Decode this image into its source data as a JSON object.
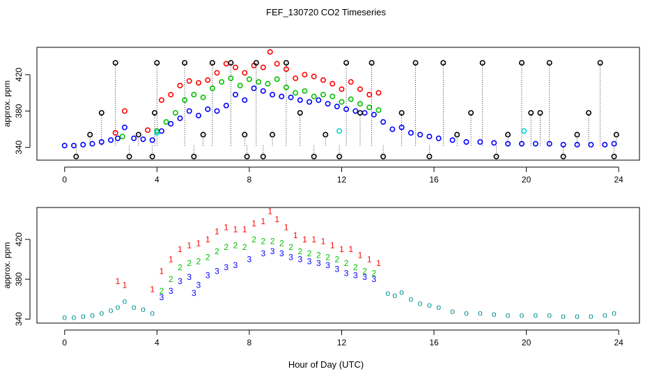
{
  "chart_data": [
    {
      "type": "scatter",
      "title": "FEF_130720  CO2 Timeseries",
      "xlabel": "",
      "ylabel": "approx. ppm",
      "xlim": [
        -1.2,
        24.9
      ],
      "ylim": [
        326,
        450
      ],
      "xticks": [
        0,
        4,
        8,
        12,
        16,
        20,
        24
      ],
      "xtick_labels": [
        "0",
        "4",
        "8",
        "12",
        "16",
        "20",
        "24"
      ],
      "yticks": [
        340,
        380,
        420
      ],
      "ytick_labels": [
        "340",
        "380",
        "420"
      ],
      "marker": "circle",
      "series": [
        {
          "name": "red",
          "color": "#ff0000",
          "x": [
            2.2,
            2.6,
            3.6,
            4.2,
            4.6,
            5.0,
            5.4,
            5.8,
            6.2,
            6.6,
            7.0,
            7.4,
            7.8,
            8.2,
            8.6,
            8.9,
            9.2,
            9.6,
            10.0,
            10.4,
            10.8,
            11.2,
            11.6,
            12.0,
            12.4,
            12.8,
            13.2,
            13.6
          ],
          "y": [
            356,
            380,
            359,
            392,
            398,
            408,
            413,
            411,
            414,
            422,
            432,
            428,
            422,
            430,
            428,
            445,
            432,
            426,
            416,
            420,
            418,
            414,
            410,
            404,
            412,
            404,
            398,
            400
          ]
        },
        {
          "name": "green",
          "color": "#00c000",
          "x": [
            2.5,
            4.0,
            4.4,
            4.8,
            5.2,
            5.6,
            6.0,
            6.4,
            6.8,
            7.2,
            7.6,
            8.0,
            8.4,
            8.8,
            9.2,
            9.6,
            10.0,
            10.4,
            10.8,
            11.2,
            11.6,
            12.0,
            12.4,
            12.8,
            13.2,
            13.6
          ],
          "y": [
            352,
            358,
            368,
            378,
            392,
            398,
            395,
            405,
            412,
            416,
            408,
            415,
            412,
            410,
            415,
            406,
            400,
            402,
            396,
            398,
            396,
            390,
            393,
            388,
            384,
            381
          ]
        },
        {
          "name": "blue",
          "color": "#0000ff",
          "x": [
            0.0,
            0.4,
            0.8,
            1.2,
            1.6,
            2.0,
            2.3,
            2.6,
            3.0,
            3.4,
            3.8,
            4.2,
            4.6,
            5.0,
            5.4,
            5.8,
            6.2,
            6.6,
            7.0,
            7.4,
            7.8,
            8.2,
            8.6,
            9.0,
            9.4,
            9.8,
            10.2,
            10.6,
            11.0,
            11.4,
            11.8,
            12.2,
            12.6,
            13.0,
            13.4,
            13.8,
            14.2,
            14.6,
            15.0,
            15.4,
            15.8,
            16.2,
            16.8,
            17.4,
            18.0,
            18.6,
            19.2,
            19.8,
            20.4,
            21.0,
            21.6,
            22.2,
            22.8,
            23.4,
            23.8
          ],
          "y": [
            342,
            342,
            343,
            344,
            346,
            348,
            350,
            362,
            350,
            349,
            348,
            358,
            366,
            372,
            380,
            375,
            382,
            380,
            386,
            398,
            392,
            405,
            402,
            398,
            396,
            395,
            392,
            390,
            392,
            388,
            385,
            382,
            380,
            378,
            376,
            368,
            360,
            362,
            356,
            354,
            352,
            350,
            348,
            346,
            346,
            345,
            344,
            344,
            344,
            344,
            343,
            343,
            343,
            343,
            344
          ]
        },
        {
          "name": "black",
          "color": "#000000",
          "x": [
            0.5,
            1.1,
            1.6,
            2.2,
            2.8,
            3.2,
            3.8,
            3.9,
            4.0,
            5.2,
            5.6,
            6.0,
            6.4,
            7.2,
            7.8,
            7.9,
            8.3,
            8.6,
            9.0,
            9.6,
            10.2,
            10.8,
            11.3,
            11.9,
            12.2,
            12.8,
            13.3,
            13.8,
            14.6,
            15.2,
            15.8,
            16.4,
            17.0,
            17.6,
            18.1,
            18.7,
            19.2,
            19.8,
            20.2,
            20.6,
            21.0,
            21.6,
            22.2,
            22.7,
            23.2,
            23.8,
            23.9
          ],
          "y": [
            330,
            354,
            378,
            433,
            330,
            354,
            330,
            378,
            433,
            433,
            330,
            354,
            433,
            433,
            354,
            330,
            433,
            330,
            354,
            433,
            378,
            330,
            354,
            330,
            433,
            378,
            433,
            330,
            378,
            433,
            330,
            433,
            354,
            378,
            433,
            330,
            354,
            433,
            378,
            378,
            433,
            330,
            354,
            378,
            433,
            330,
            354
          ]
        },
        {
          "name": "cyan",
          "color": "#00d0d0",
          "x": [
            4.0,
            11.9,
            19.9
          ],
          "y": [
            356,
            358,
            358
          ]
        }
      ]
    },
    {
      "type": "scatter",
      "title": "",
      "xlabel": "Hour of Day (UTC)",
      "ylabel": "approx. ppm",
      "xlim": [
        -1.2,
        24.9
      ],
      "ylim": [
        336,
        452
      ],
      "xticks": [
        0,
        4,
        8,
        12,
        16,
        20,
        24
      ],
      "xtick_labels": [
        "0",
        "4",
        "8",
        "12",
        "16",
        "20",
        "24"
      ],
      "yticks": [
        340,
        380,
        420
      ],
      "ytick_labels": [
        "340",
        "380",
        "420"
      ],
      "marker": "text",
      "series": [
        {
          "name": "1",
          "label": "1",
          "color": "#ff0000",
          "x": [
            2.3,
            2.6,
            3.8,
            4.2,
            4.6,
            5.0,
            5.4,
            5.8,
            6.2,
            6.6,
            7.0,
            7.4,
            7.8,
            8.2,
            8.6,
            8.9,
            9.2,
            9.6,
            10.0,
            10.4,
            10.8,
            11.2,
            11.6,
            12.0,
            12.4,
            12.8,
            13.2,
            13.6
          ],
          "y": [
            378,
            374,
            370,
            388,
            400,
            410,
            414,
            416,
            420,
            428,
            432,
            430,
            430,
            436,
            438,
            448,
            440,
            432,
            424,
            420,
            420,
            418,
            414,
            410,
            410,
            404,
            400,
            396
          ]
        },
        {
          "name": "2",
          "label": "2",
          "color": "#00c000",
          "x": [
            4.2,
            4.6,
            5.0,
            5.4,
            5.8,
            6.2,
            6.6,
            7.0,
            7.4,
            7.8,
            8.2,
            8.6,
            9.0,
            9.4,
            9.8,
            10.2,
            10.6,
            11.0,
            11.4,
            11.8,
            12.2,
            12.6,
            13.0,
            13.4
          ],
          "y": [
            368,
            380,
            392,
            396,
            398,
            402,
            408,
            412,
            414,
            412,
            420,
            418,
            418,
            416,
            412,
            408,
            406,
            404,
            402,
            400,
            396,
            392,
            388,
            386
          ]
        },
        {
          "name": "3",
          "label": "3",
          "color": "#0000ff",
          "x": [
            4.2,
            4.6,
            5.0,
            5.4,
            5.6,
            5.8,
            6.2,
            6.6,
            7.0,
            7.4,
            8.0,
            8.6,
            9.0,
            9.4,
            9.8,
            10.2,
            10.6,
            11.0,
            11.4,
            11.8,
            12.2,
            12.6,
            13.0,
            13.4
          ],
          "y": [
            362,
            368,
            378,
            382,
            366,
            374,
            384,
            388,
            392,
            394,
            400,
            406,
            408,
            406,
            402,
            400,
            398,
            396,
            394,
            390,
            386,
            384,
            382,
            380
          ]
        },
        {
          "name": "baseline",
          "label": "o",
          "color": "#009090",
          "x": [
            0.0,
            0.4,
            0.8,
            1.2,
            1.6,
            2.0,
            2.3,
            2.6,
            3.0,
            3.4,
            3.8,
            14.0,
            14.3,
            14.6,
            15.0,
            15.4,
            15.8,
            16.2,
            16.8,
            17.4,
            18.0,
            18.6,
            19.2,
            19.8,
            20.4,
            21.0,
            21.6,
            22.2,
            22.8,
            23.4,
            23.8
          ],
          "y": [
            342,
            342,
            343,
            344,
            346,
            349,
            352,
            358,
            352,
            350,
            346,
            366,
            364,
            367,
            360,
            356,
            354,
            352,
            348,
            346,
            346,
            345,
            344,
            344,
            344,
            344,
            343,
            343,
            343,
            344,
            346
          ]
        }
      ]
    }
  ]
}
